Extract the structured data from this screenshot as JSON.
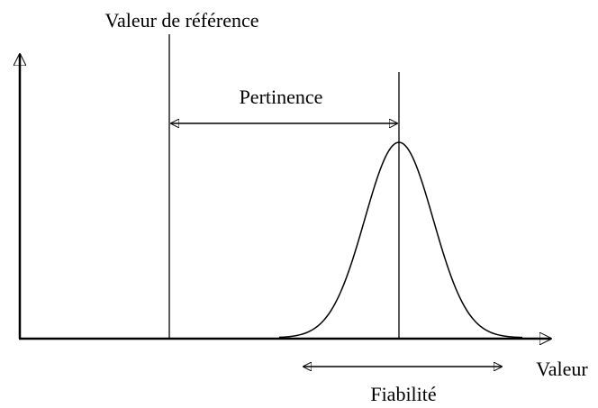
{
  "labels": {
    "reference": "Valeur de référence",
    "relevance": "Pertinence",
    "reliability": "Fiabilité",
    "axis": "Valeur"
  }
}
